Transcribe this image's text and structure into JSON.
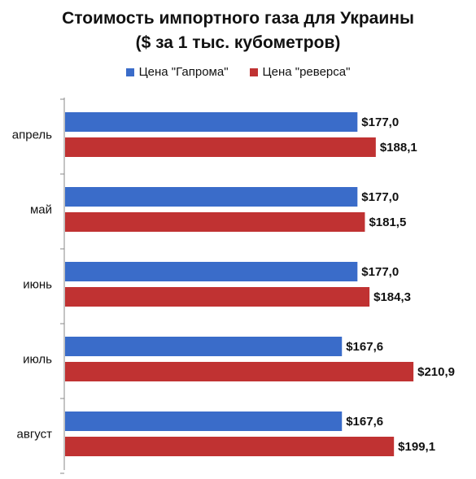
{
  "chart_data": {
    "type": "bar",
    "orientation": "horizontal",
    "title": "Стоимость импортного газа для Украины",
    "subtitle": "($ за 1 тыс. кубометров)",
    "xlabel": "",
    "ylabel": "",
    "legend_position": "top",
    "grid": false,
    "xlim": [
      0,
      230
    ],
    "categories": [
      "апрель",
      "май",
      "июнь",
      "июль",
      "август"
    ],
    "series": [
      {
        "name": "Цена \"Гапрома\"",
        "color": "#3A6CC9",
        "values": [
          177.0,
          177.0,
          177.0,
          167.6,
          167.6
        ],
        "labels": [
          "$177,0",
          "$177,0",
          "$177,0",
          "$167,6",
          "$167,6"
        ]
      },
      {
        "name": "Цена \"реверса\"",
        "color": "#C03232",
        "values": [
          188.1,
          181.5,
          184.3,
          210.9,
          199.1
        ],
        "labels": [
          "$188,1",
          "$181,5",
          "$184,3",
          "$210,9",
          "$199,1"
        ]
      }
    ]
  }
}
